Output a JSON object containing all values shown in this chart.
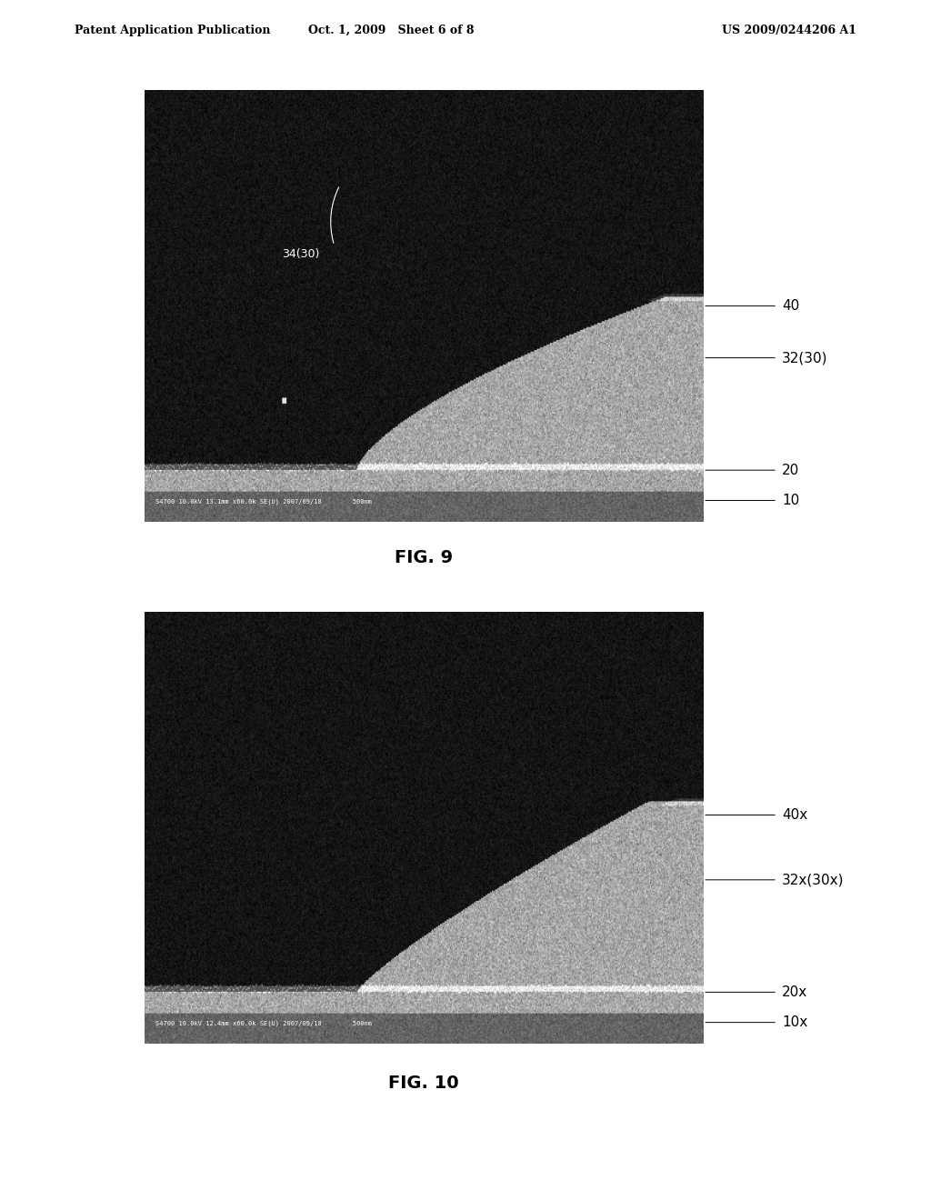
{
  "page_title_left": "Patent Application Publication",
  "page_title_center": "Oct. 1, 2009   Sheet 6 of 8",
  "page_title_right": "US 2009/0244206 A1",
  "fig9_caption": "FIG. 9",
  "fig10_caption": "FIG. 10",
  "fig9_labels": [
    "40",
    "32(30)",
    "20",
    "10"
  ],
  "fig9_annotation": "34(30)",
  "fig10_labels": [
    "40x",
    "32x(30x)",
    "20x",
    "10x"
  ],
  "fig9_sem_text": "S4700 10.0kV 13.1mm x60.0k SE(U) 2007/09/18        500nm",
  "fig10_sem_text": "S4700 10.0kV 12.4mm x60.0k SE(U) 2007/09/18        500nm",
  "bg_color": "#ffffff",
  "text_color": "#000000",
  "header_fontsize": 9,
  "label_fontsize": 11,
  "caption_fontsize": 14
}
